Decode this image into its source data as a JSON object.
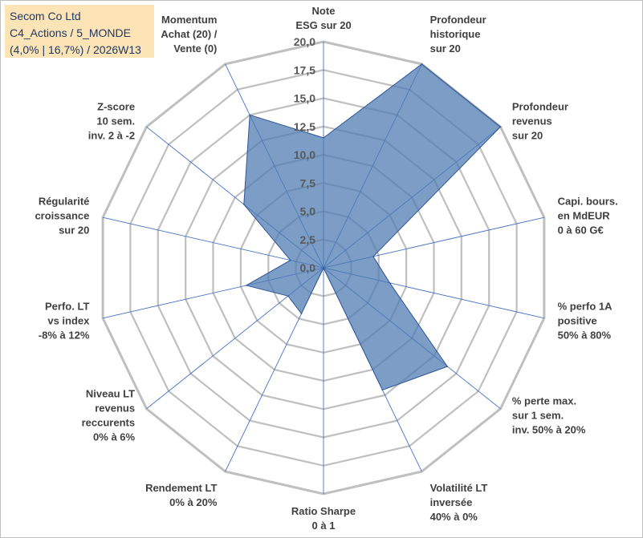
{
  "header": {
    "company": "Secom Co Ltd",
    "portfolio": "C4_Actions / 5_MONDE",
    "weights_period": "(4,0% | 16,7%) / 2026W13"
  },
  "colors": {
    "fill": "#4f7cb3",
    "stroke": "#2f5597",
    "grid": "#bfbfbf",
    "spoke": "#4472c4",
    "title_bg": "#fce4b6",
    "title_text": "#1f3864"
  },
  "chart_data": {
    "type": "radar",
    "rmin": 0,
    "rmax": 20,
    "ticks": [
      0,
      2.5,
      5,
      7.5,
      10,
      12.5,
      15,
      17.5,
      20
    ],
    "tick_labels": [
      "0,0",
      "2,5",
      "5,0",
      "7,5",
      "10,0",
      "12,5",
      "15,0",
      "17,5",
      "20,0"
    ],
    "axes": [
      {
        "lines": [
          "Note",
          "ESG sur 20"
        ],
        "value": 11.5
      },
      {
        "lines": [
          "Profondeur",
          "historique",
          "sur 20"
        ],
        "value": 20
      },
      {
        "lines": [
          "Profondeur",
          "revenus",
          "sur 20"
        ],
        "value": 20
      },
      {
        "lines": [
          "Capi. bours.",
          "en MdEUR",
          "0 à 60 G€"
        ],
        "value": 4.5
      },
      {
        "lines": [
          "% perfo 1A",
          "positive",
          "50% à 80%"
        ],
        "value": 6
      },
      {
        "lines": [
          "% perte max.",
          "sur 1 sem.",
          "inv. 50% à 20%"
        ],
        "value": 14
      },
      {
        "lines": [
          "Volatilité LT",
          "inversée",
          "40% à 0%"
        ],
        "value": 12
      },
      {
        "lines": [
          "Ratio Sharpe",
          "0 à 1"
        ],
        "value": 0
      },
      {
        "lines": [
          "Rendement LT",
          "0% à 20%"
        ],
        "value": 4.5
      },
      {
        "lines": [
          "Niveau LT",
          "revenus",
          "reccurents",
          "0% à 6%"
        ],
        "value": 4
      },
      {
        "lines": [
          "Perfo. LT",
          "vs index",
          "-8% à 12%"
        ],
        "value": 7
      },
      {
        "lines": [
          "Régularité",
          "croissance",
          "sur 20"
        ],
        "value": 3
      },
      {
        "lines": [
          "Z-score",
          "10 sem.",
          "inv. 2 à -2"
        ],
        "value": 9
      },
      {
        "lines": [
          "Momentum",
          "Achat (20) /",
          "Vente (0)"
        ],
        "value": 15
      }
    ]
  }
}
